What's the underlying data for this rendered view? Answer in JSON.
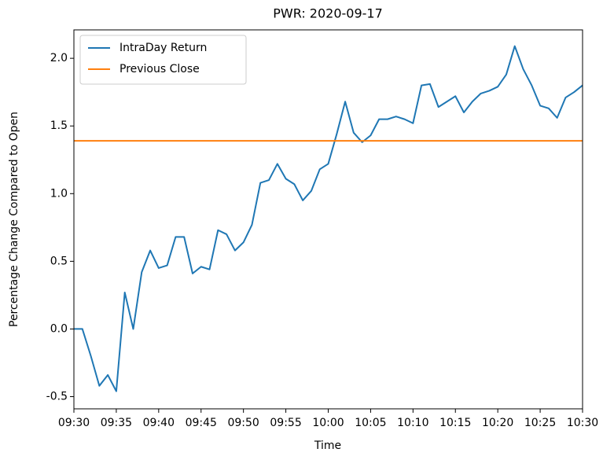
{
  "chart_data": {
    "type": "line",
    "title": "PWR: 2020-09-17",
    "xlabel": "Time",
    "ylabel": "Percentage Change Compared to Open",
    "x": [
      "09:30",
      "09:31",
      "09:32",
      "09:33",
      "09:34",
      "09:35",
      "09:36",
      "09:37",
      "09:38",
      "09:39",
      "09:40",
      "09:41",
      "09:42",
      "09:43",
      "09:44",
      "09:45",
      "09:46",
      "09:47",
      "09:48",
      "09:49",
      "09:50",
      "09:51",
      "09:52",
      "09:53",
      "09:54",
      "09:55",
      "09:56",
      "09:57",
      "09:58",
      "09:59",
      "10:00",
      "10:01",
      "10:02",
      "10:03",
      "10:04",
      "10:05",
      "10:06",
      "10:07",
      "10:08",
      "10:09",
      "10:10",
      "10:11",
      "10:12",
      "10:13",
      "10:14",
      "10:15",
      "10:16",
      "10:17",
      "10:18",
      "10:19",
      "10:20",
      "10:21",
      "10:22",
      "10:23",
      "10:24",
      "10:25",
      "10:26",
      "10:27",
      "10:28",
      "10:29",
      "10:30"
    ],
    "series": [
      {
        "name": "IntraDay Return",
        "color": "#1f77b4",
        "values": [
          0.0,
          0.0,
          -0.2,
          -0.42,
          -0.34,
          -0.46,
          0.27,
          0.0,
          0.42,
          0.58,
          0.45,
          0.47,
          0.68,
          0.68,
          0.41,
          0.46,
          0.44,
          0.73,
          0.7,
          0.58,
          0.64,
          0.77,
          1.08,
          1.1,
          1.22,
          1.11,
          1.07,
          0.95,
          1.02,
          1.18,
          1.22,
          1.44,
          1.68,
          1.45,
          1.38,
          1.43,
          1.55,
          1.55,
          1.57,
          1.55,
          1.52,
          1.8,
          1.81,
          1.64,
          1.68,
          1.72,
          1.6,
          1.68,
          1.74,
          1.76,
          1.79,
          1.88,
          2.09,
          1.92,
          1.8,
          1.65,
          1.63,
          1.56,
          1.71,
          1.75,
          1.8
        ]
      },
      {
        "name": "Previous Close",
        "color": "#ff7f0e",
        "value": 1.39
      }
    ],
    "xlim": [
      "09:30",
      "10:30"
    ],
    "xticks": [
      "09:30",
      "09:35",
      "09:40",
      "09:45",
      "09:50",
      "09:55",
      "10:00",
      "10:05",
      "10:10",
      "10:15",
      "10:20",
      "10:25",
      "10:30"
    ],
    "ylim": [
      -0.59,
      2.21
    ],
    "yticks": [
      -0.5,
      {
        "value": 0,
        "label": "0.0"
      },
      0.5,
      {
        "value": 1,
        "label": "1.0"
      },
      1.5,
      {
        "value": 2,
        "label": "2.0"
      }
    ],
    "legend": "upper left"
  }
}
